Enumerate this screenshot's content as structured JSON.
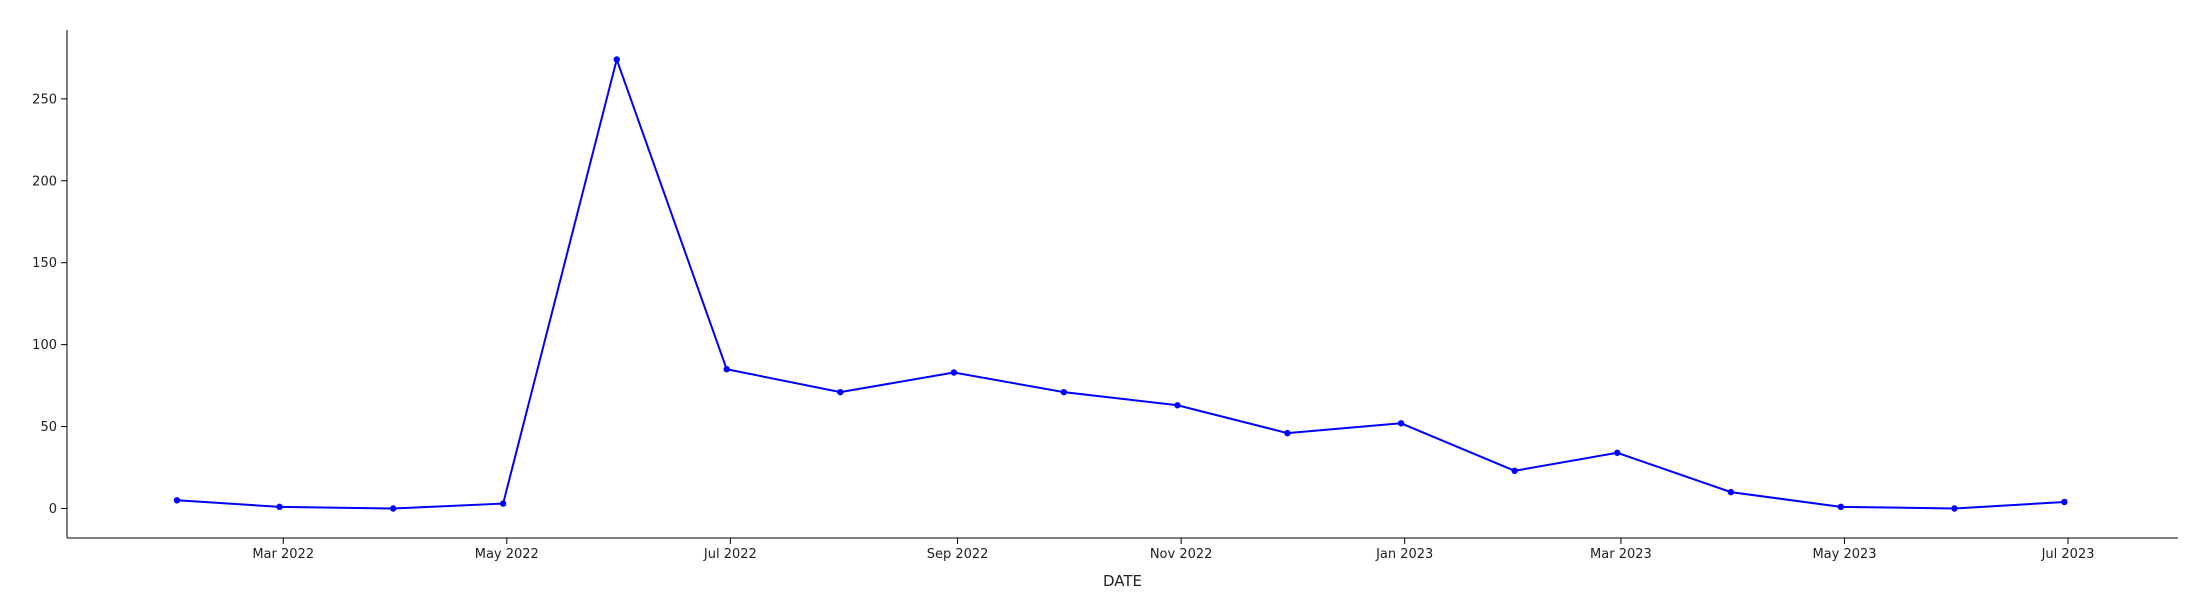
{
  "chart_data": {
    "type": "line",
    "title": "",
    "xlabel": "DATE",
    "ylabel": "",
    "x": [
      "2022-01-31",
      "2022-02-28",
      "2022-03-31",
      "2022-04-30",
      "2022-05-31",
      "2022-06-30",
      "2022-07-31",
      "2022-08-31",
      "2022-09-30",
      "2022-10-31",
      "2022-11-30",
      "2022-12-31",
      "2023-01-31",
      "2023-02-28",
      "2023-03-31",
      "2023-04-30",
      "2023-05-31",
      "2023-06-30"
    ],
    "series": [
      {
        "values": [
          5,
          1,
          0,
          3,
          274,
          85,
          71,
          83,
          71,
          63,
          46,
          52,
          23,
          34,
          10,
          1,
          0,
          4
        ]
      }
    ],
    "ylim": [
      -18,
      292
    ],
    "xlim": [
      "2022-01-01",
      "2023-07-31"
    ],
    "y_ticks": [
      0,
      50,
      100,
      150,
      200,
      250
    ],
    "x_ticks": [
      {
        "date": "2022-03-01",
        "label": "Mar 2022"
      },
      {
        "date": "2022-05-01",
        "label": "May 2022"
      },
      {
        "date": "2022-07-01",
        "label": "Jul 2022"
      },
      {
        "date": "2022-09-01",
        "label": "Sep 2022"
      },
      {
        "date": "2022-11-01",
        "label": "Nov 2022"
      },
      {
        "date": "2023-01-01",
        "label": "Jan 2023"
      },
      {
        "date": "2023-03-01",
        "label": "Mar 2023"
      },
      {
        "date": "2023-05-01",
        "label": "May 2023"
      },
      {
        "date": "2023-07-01",
        "label": "Jul 2023"
      }
    ],
    "grid": false,
    "line_color": "#0000ff",
    "marker": "circle"
  }
}
